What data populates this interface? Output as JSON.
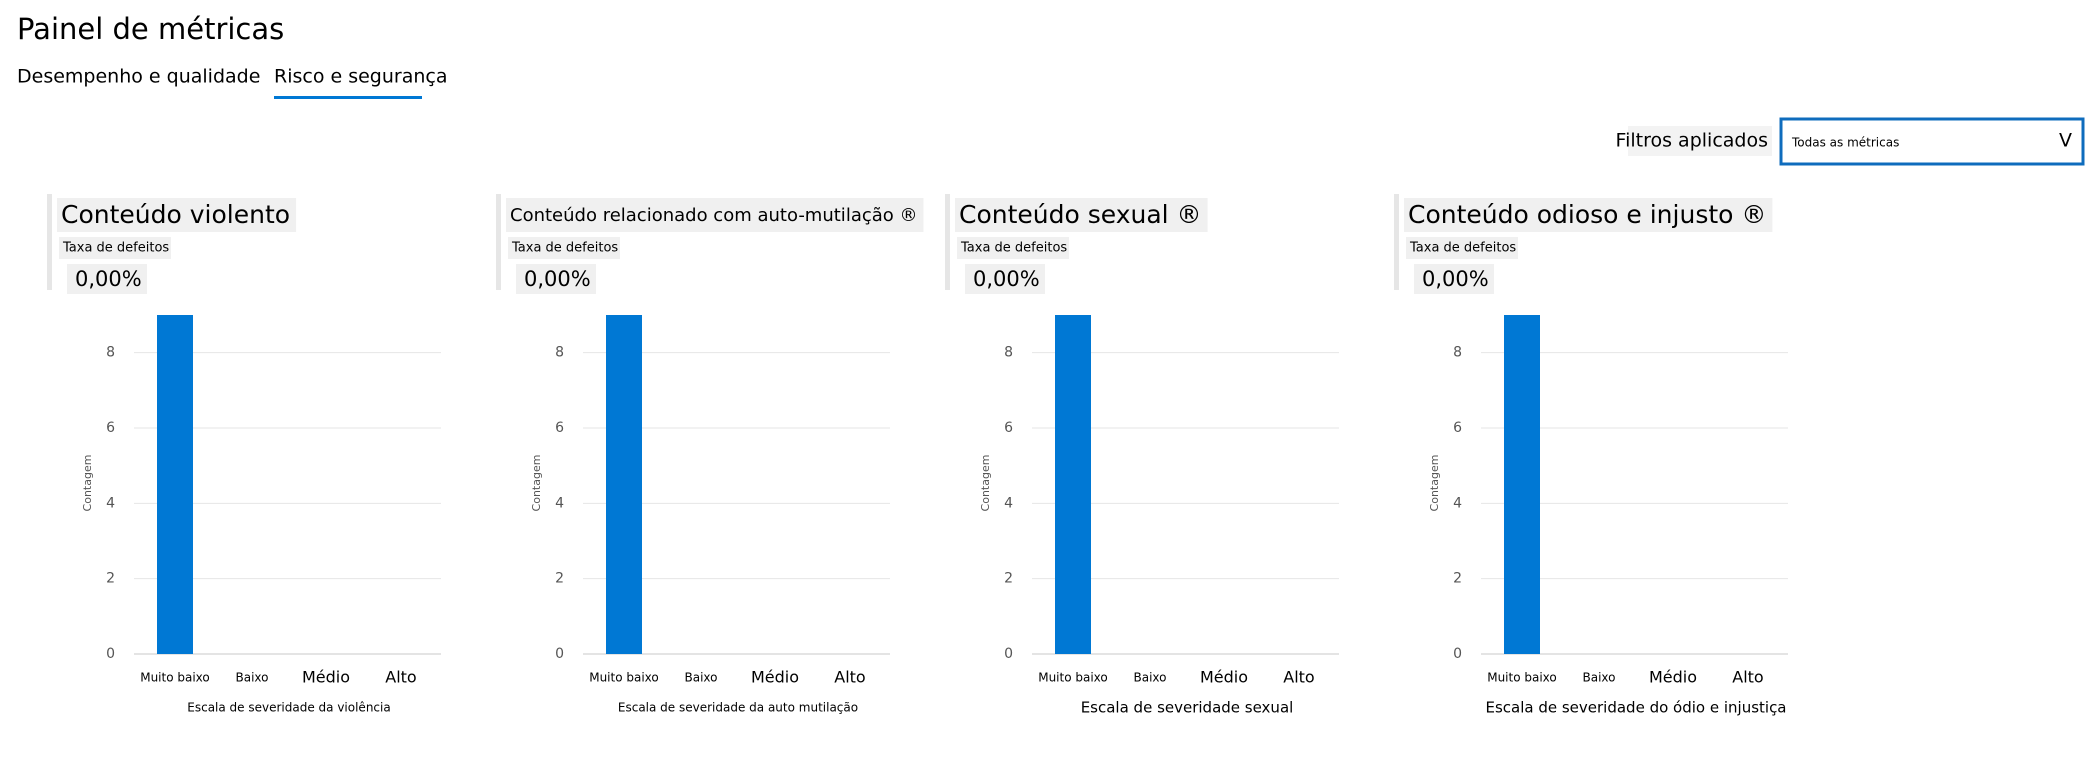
{
  "header": {
    "title": "Painel de métricas"
  },
  "tabs": [
    "Desempenho e qualidade",
    "Risco e segurança"
  ],
  "filter": {
    "label": "Filtros aplicados",
    "value": "Todas as métricas",
    "icon": "V"
  },
  "panels": [
    {
      "title": "Conteúdo violento",
      "metric_label": "Taxa de defeitos",
      "metric_value": "0,00%",
      "chart": {
        "type": "bar",
        "categories": [
          "Muito baixo",
          "Baixo",
          "Médio",
          "Alto"
        ],
        "values": [
          9,
          0,
          0,
          0
        ],
        "color": "#0078d4",
        "ylim": [
          0,
          9
        ],
        "yticks": [
          0,
          2,
          4,
          6,
          8
        ],
        "grid": true,
        "y_label": "Contagem",
        "x_label": "Escala de severidade da violência"
      }
    },
    {
      "title": "Conteúdo relacionado com auto-mutilação ®",
      "metric_label": "Taxa de defeitos",
      "metric_value": "0,00%",
      "chart": {
        "type": "bar",
        "categories": [
          "Muito baixo",
          "Baixo",
          "Médio",
          "Alto"
        ],
        "values": [
          9,
          0,
          0,
          0
        ],
        "color": "#0078d4",
        "ylim": [
          0,
          9
        ],
        "yticks": [
          0,
          2,
          4,
          6,
          8
        ],
        "grid": true,
        "y_label": "Contagem",
        "x_label": "Escala de severidade da auto mutilação"
      }
    },
    {
      "title": "Conteúdo sexual ®",
      "metric_label": "Taxa de defeitos",
      "metric_value": "0,00%",
      "chart": {
        "type": "bar",
        "categories": [
          "Muito baixo",
          "Baixo",
          "Médio",
          "Alto"
        ],
        "values": [
          9,
          0,
          0,
          0
        ],
        "color": "#0078d4",
        "ylim": [
          0,
          9
        ],
        "yticks": [
          0,
          2,
          4,
          6,
          8
        ],
        "grid": true,
        "y_label": "Contagem",
        "x_label": "Escala de severidade sexual"
      }
    },
    {
      "title": "Conteúdo odioso e injusto ®",
      "metric_label": "Taxa de defeitos",
      "metric_value": "0,00%",
      "chart": {
        "type": "bar",
        "categories": [
          "Muito baixo",
          "Baixo",
          "Médio",
          "Alto"
        ],
        "values": [
          9,
          0,
          0,
          0
        ],
        "color": "#0078d4",
        "ylim": [
          0,
          9
        ],
        "yticks": [
          0,
          2,
          4,
          6,
          8
        ],
        "grid": true,
        "y_label": "Contagem",
        "x_label": "Escala de severidade do ódio e injustiça"
      }
    }
  ]
}
